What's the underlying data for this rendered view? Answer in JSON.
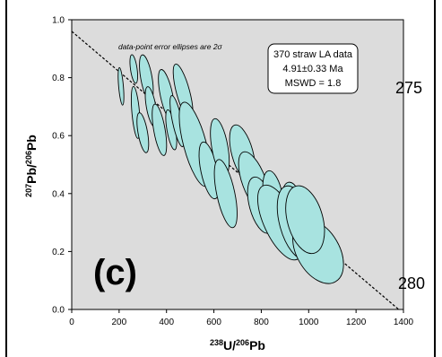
{
  "chart_data": {
    "type": "scatter",
    "subtype": "error-ellipse concordia-style plot",
    "xlabel_parts": [
      "238",
      "U/",
      "206",
      "Pb"
    ],
    "ylabel_parts": [
      "207",
      "Pb/",
      "206",
      "Pb"
    ],
    "xlim": [
      0,
      1400
    ],
    "ylim": [
      0.0,
      1.0
    ],
    "x_ticks": [
      0,
      200,
      400,
      600,
      800,
      1000,
      1200,
      1400
    ],
    "y_ticks": [
      0.0,
      0.2,
      0.4,
      0.6,
      0.8,
      1.0
    ],
    "x_tick_labels": [
      "0",
      "200",
      "400",
      "600",
      "800",
      "1000",
      "1200",
      "1400"
    ],
    "y_tick_labels": [
      "0.0",
      "0.2",
      "0.4",
      "0.6",
      "0.8",
      "1.0"
    ],
    "note": "data-point error ellipses are 2σ",
    "result_box": [
      "370 straw LA data",
      "4.91±0.33 Ma",
      "MSWD = 1.8"
    ],
    "panel_label": "(c)",
    "regression_line": {
      "x": [
        0,
        1380
      ],
      "y": [
        0.96,
        0.0
      ]
    },
    "ellipse_fill": "#a8e3e0",
    "background": "#dcdcdc",
    "ellipses": [
      {
        "x": 208,
        "y": 0.77,
        "rx": 10,
        "ry": 0.065,
        "angle": -5
      },
      {
        "x": 262,
        "y": 0.83,
        "rx": 14,
        "ry": 0.05,
        "angle": -8
      },
      {
        "x": 270,
        "y": 0.68,
        "rx": 16,
        "ry": 0.09,
        "angle": -5
      },
      {
        "x": 300,
        "y": 0.61,
        "rx": 20,
        "ry": 0.07,
        "angle": -10
      },
      {
        "x": 315,
        "y": 0.8,
        "rx": 24,
        "ry": 0.08,
        "angle": -10
      },
      {
        "x": 335,
        "y": 0.7,
        "rx": 20,
        "ry": 0.07,
        "angle": -10
      },
      {
        "x": 370,
        "y": 0.62,
        "rx": 24,
        "ry": 0.09,
        "angle": -10
      },
      {
        "x": 400,
        "y": 0.74,
        "rx": 26,
        "ry": 0.09,
        "angle": -12
      },
      {
        "x": 420,
        "y": 0.62,
        "rx": 18,
        "ry": 0.07,
        "angle": -10
      },
      {
        "x": 445,
        "y": 0.65,
        "rx": 20,
        "ry": 0.09,
        "angle": -12
      },
      {
        "x": 470,
        "y": 0.75,
        "rx": 28,
        "ry": 0.1,
        "angle": -15
      },
      {
        "x": 520,
        "y": 0.57,
        "rx": 48,
        "ry": 0.15,
        "angle": -15
      },
      {
        "x": 580,
        "y": 0.48,
        "rx": 35,
        "ry": 0.1,
        "angle": -12
      },
      {
        "x": 625,
        "y": 0.56,
        "rx": 34,
        "ry": 0.1,
        "angle": -10
      },
      {
        "x": 650,
        "y": 0.4,
        "rx": 38,
        "ry": 0.12,
        "angle": -12
      },
      {
        "x": 720,
        "y": 0.54,
        "rx": 45,
        "ry": 0.1,
        "angle": -15
      },
      {
        "x": 770,
        "y": 0.44,
        "rx": 50,
        "ry": 0.11,
        "angle": -20
      },
      {
        "x": 800,
        "y": 0.36,
        "rx": 50,
        "ry": 0.1,
        "angle": -15
      },
      {
        "x": 850,
        "y": 0.39,
        "rx": 40,
        "ry": 0.09,
        "angle": -10
      },
      {
        "x": 880,
        "y": 0.3,
        "rx": 68,
        "ry": 0.14,
        "angle": -25
      },
      {
        "x": 930,
        "y": 0.37,
        "rx": 40,
        "ry": 0.07,
        "angle": -10
      },
      {
        "x": 945,
        "y": 0.3,
        "rx": 68,
        "ry": 0.13,
        "angle": -15
      },
      {
        "x": 1040,
        "y": 0.2,
        "rx": 90,
        "ry": 0.12,
        "angle": -30
      },
      {
        "x": 985,
        "y": 0.31,
        "rx": 75,
        "ry": 0.12,
        "angle": -15
      }
    ]
  },
  "side_labels": {
    "top": "275",
    "bottom": "280"
  }
}
